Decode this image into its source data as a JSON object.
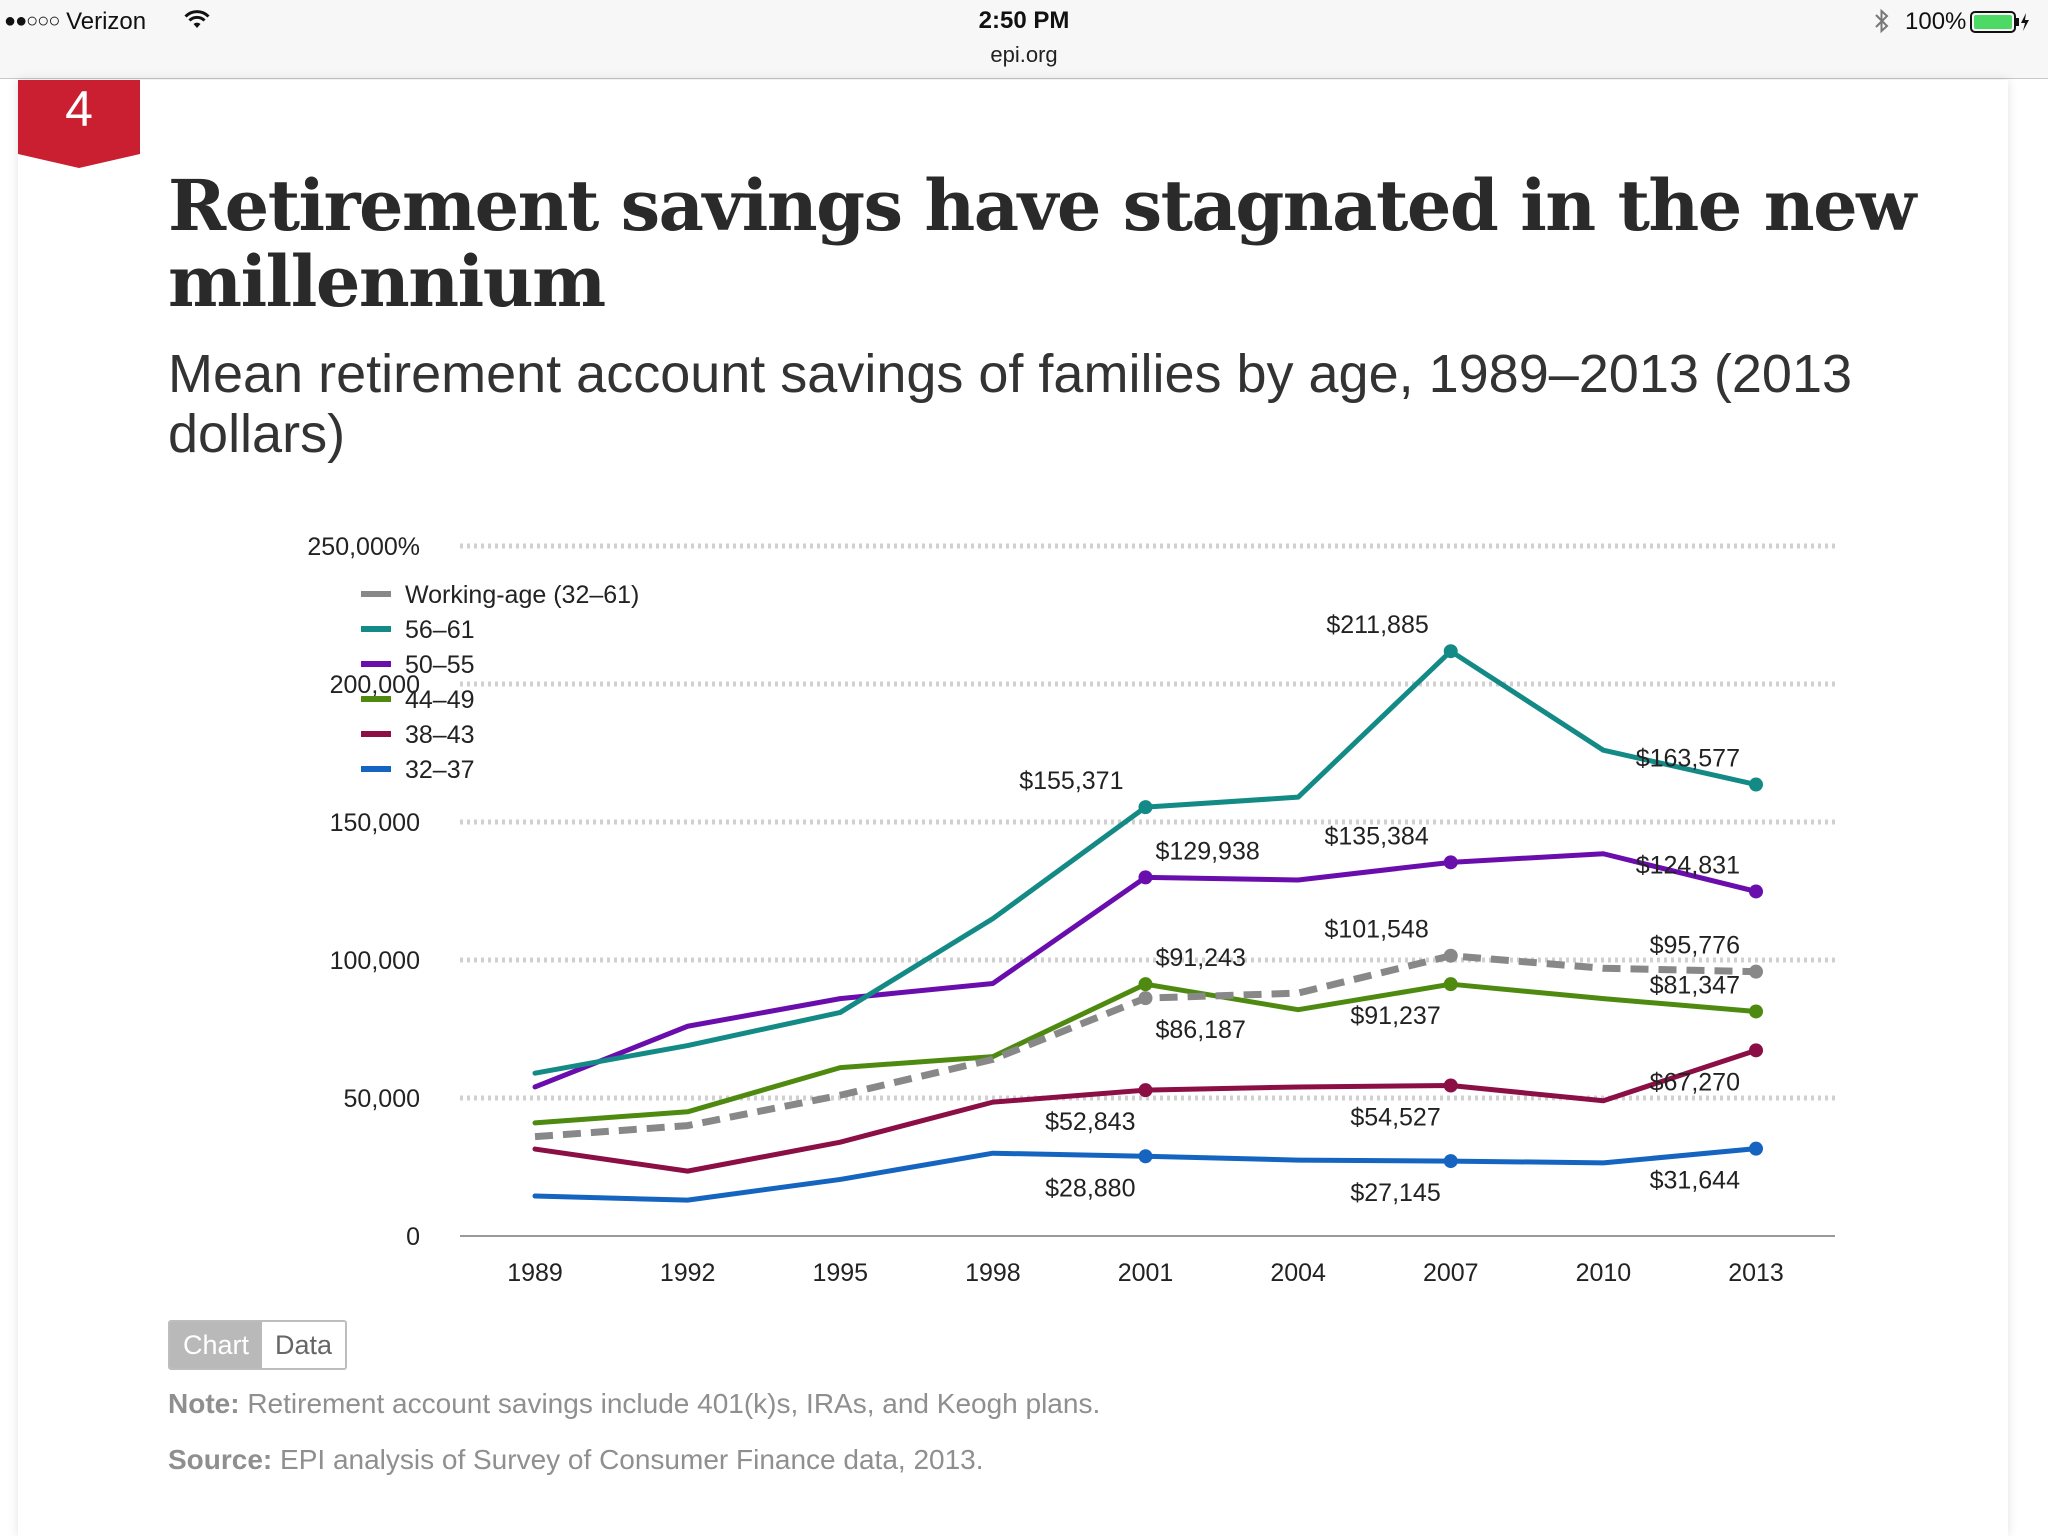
{
  "status_bar": {
    "carrier": "Verizon",
    "time": "2:50 PM",
    "url": "epi.org",
    "battery": "100%"
  },
  "figure": {
    "number": "4",
    "title": "Retirement savings have stagnated in the new millennium",
    "subtitle": "Mean retirement account savings of families by age, 1989–2013 (2013 dollars)",
    "toggle": {
      "chart": "Chart",
      "data": "Data",
      "active": "chart"
    },
    "note_label": "Note:",
    "note_text": "Retirement account savings include 401(k)s, IRAs, and Keogh plans.",
    "source_label": "Source:",
    "source_text": "EPI analysis of  Survey of Consumer Finance data, 2013."
  },
  "colors": {
    "badge": "#c91f30",
    "grid": "#d0d0d0",
    "axis": "#9a9a9a"
  },
  "chart_data": {
    "type": "line",
    "title": "Retirement savings have stagnated in the new millennium",
    "subtitle": "Mean retirement account savings of families by age, 1989–2013 (2013 dollars)",
    "x": [
      1989,
      1992,
      1995,
      1998,
      2001,
      2004,
      2007,
      2010,
      2013
    ],
    "x_tick_labels": [
      "1989",
      "1992",
      "1995",
      "1998",
      "2001",
      "2004",
      "2007",
      "2010",
      "2013"
    ],
    "ylim": [
      0,
      250000
    ],
    "y_ticks": [
      0,
      50000,
      100000,
      150000,
      200000,
      250000
    ],
    "y_tick_labels": [
      "0",
      "50,000",
      "100,000",
      "150,000",
      "200,000",
      "250,000%"
    ],
    "grid": true,
    "legend_position": "top-left",
    "series": [
      {
        "name": "Working-age (32–61)",
        "color": "#888888",
        "dashed": true,
        "values": [
          36000,
          40000,
          51000,
          64000,
          86187,
          88000,
          101548,
          97000,
          95776
        ]
      },
      {
        "name": "56–61",
        "color": "#138a85",
        "dashed": false,
        "values": [
          59000,
          69000,
          81000,
          115000,
          155371,
          159000,
          211885,
          176000,
          163577
        ]
      },
      {
        "name": "50–55",
        "color": "#6a0dad",
        "dashed": false,
        "values": [
          54000,
          76000,
          86000,
          91500,
          129938,
          129000,
          135384,
          138500,
          124831
        ]
      },
      {
        "name": "44–49",
        "color": "#4f8a10",
        "dashed": false,
        "values": [
          41000,
          45000,
          61000,
          65000,
          91243,
          82000,
          91237,
          86000,
          81347
        ]
      },
      {
        "name": "38–43",
        "color": "#8b0e45",
        "dashed": false,
        "values": [
          31500,
          23500,
          34000,
          48500,
          52843,
          54000,
          54527,
          49000,
          67270
        ]
      },
      {
        "name": "32–37",
        "color": "#1565c0",
        "dashed": false,
        "values": [
          14500,
          13000,
          20500,
          30000,
          28880,
          27500,
          27145,
          26500,
          31644
        ]
      }
    ],
    "data_labels": [
      {
        "series": 1,
        "x": 2001,
        "text": "$155,371",
        "pos": "above-left"
      },
      {
        "series": 1,
        "x": 2007,
        "text": "$211,885",
        "pos": "above-left"
      },
      {
        "series": 1,
        "x": 2013,
        "text": "$163,577",
        "pos": "above-left"
      },
      {
        "series": 2,
        "x": 2001,
        "text": "$129,938",
        "pos": "above-right"
      },
      {
        "series": 2,
        "x": 2007,
        "text": "$135,384",
        "pos": "above-left"
      },
      {
        "series": 2,
        "x": 2013,
        "text": "$124,831",
        "pos": "above-left"
      },
      {
        "series": 3,
        "x": 2001,
        "text": "$91,243",
        "pos": "above-right"
      },
      {
        "series": 3,
        "x": 2007,
        "text": "$91,237",
        "pos": "below-left"
      },
      {
        "series": 3,
        "x": 2013,
        "text": "$81,347",
        "pos": "above-left"
      },
      {
        "series": 0,
        "x": 2001,
        "text": "$86,187",
        "pos": "below-right"
      },
      {
        "series": 0,
        "x": 2007,
        "text": "$101,548",
        "pos": "above-left"
      },
      {
        "series": 0,
        "x": 2013,
        "text": "$95,776",
        "pos": "above-left"
      },
      {
        "series": 4,
        "x": 2001,
        "text": "$52,843",
        "pos": "below-left"
      },
      {
        "series": 4,
        "x": 2007,
        "text": "$54,527",
        "pos": "below-left"
      },
      {
        "series": 4,
        "x": 2013,
        "text": "$67,270",
        "pos": "below-left"
      },
      {
        "series": 5,
        "x": 2001,
        "text": "$28,880",
        "pos": "below-left"
      },
      {
        "series": 5,
        "x": 2007,
        "text": "$27,145",
        "pos": "below-left"
      },
      {
        "series": 5,
        "x": 2013,
        "text": "$31,644",
        "pos": "below-left"
      }
    ],
    "marker_years": [
      2001,
      2007,
      2013
    ]
  }
}
